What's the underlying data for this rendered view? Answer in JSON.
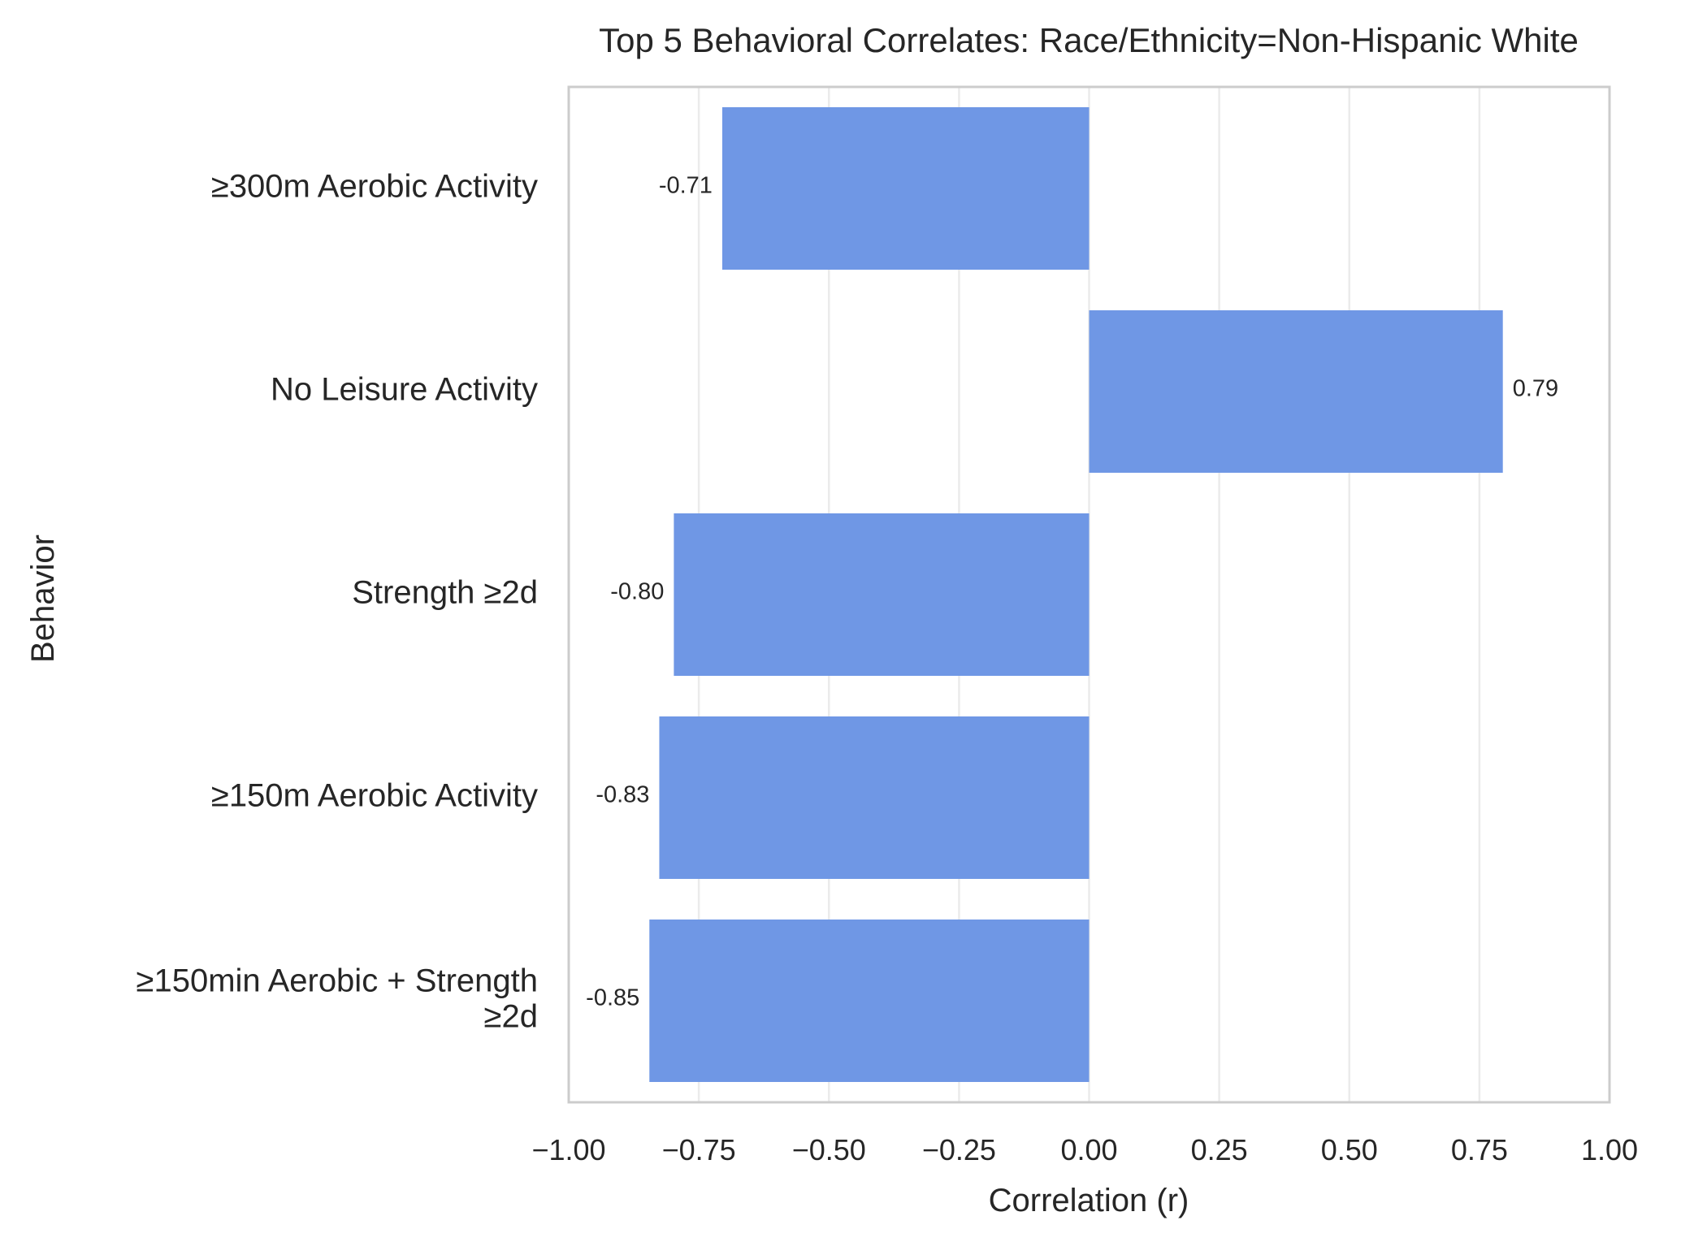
{
  "chart_data": {
    "type": "bar",
    "orientation": "horizontal",
    "title": "Top 5 Behavioral Correlates: Race/Ethnicity=Non-Hispanic White",
    "xlabel": "Correlation (r)",
    "ylabel": "Behavior",
    "xlim": [
      -1.0,
      1.0
    ],
    "xticks": [
      "−1.00",
      "−0.75",
      "−0.50",
      "−0.25",
      "0.00",
      "0.25",
      "0.50",
      "0.75",
      "1.00"
    ],
    "xtick_values": [
      -1.0,
      -0.75,
      -0.5,
      -0.25,
      0.0,
      0.25,
      0.5,
      0.75,
      1.0
    ],
    "categories": [
      [
        "≥300m Aerobic Activity"
      ],
      [
        "No Leisure Activity"
      ],
      [
        "Strength ≥2d"
      ],
      [
        "≥150m Aerobic Activity"
      ],
      [
        "≥150min Aerobic + Strength",
        "≥2d"
      ]
    ],
    "values": [
      -0.705,
      0.795,
      -0.798,
      -0.826,
      -0.845
    ],
    "data_labels": [
      "-0.71",
      "0.79",
      "-0.80",
      "-0.83",
      "-0.85"
    ],
    "bar_color": "#6f97e5",
    "grid": "vertical",
    "grid_color": "#ebebeb",
    "frame_color": "#cccccc"
  }
}
